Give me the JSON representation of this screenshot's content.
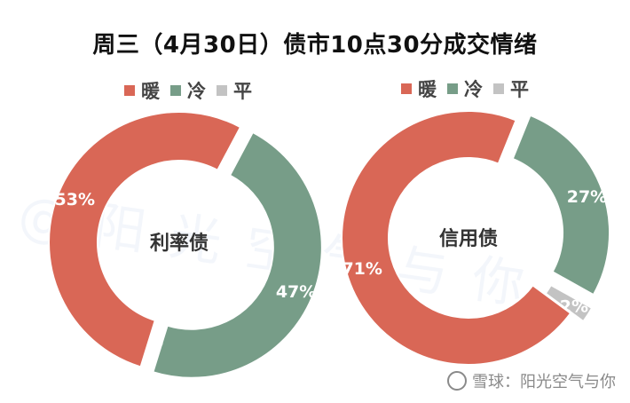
{
  "title": "周三（4月30日）债市10点30分成交情绪",
  "colors": {
    "warm": "#d96756",
    "cold": "#779d88",
    "flat": "#c3c3c3"
  },
  "chart_data": [
    {
      "type": "pie",
      "center_label": "利率债",
      "legend": [
        "暖",
        "冷",
        "平"
      ],
      "slices": [
        {
          "name": "暖",
          "value": 53,
          "label": "53%"
        },
        {
          "name": "冷",
          "value": 47,
          "label": "47%"
        },
        {
          "name": "平",
          "value": 0,
          "label": "0%"
        }
      ]
    },
    {
      "type": "pie",
      "center_label": "信用债",
      "legend": [
        "暖",
        "冷",
        "平"
      ],
      "slices": [
        {
          "name": "暖",
          "value": 71,
          "label": "71%"
        },
        {
          "name": "冷",
          "value": 27,
          "label": "27%"
        },
        {
          "name": "平",
          "value": 2,
          "label": "2%"
        }
      ]
    }
  ],
  "watermark": "@阳光空气与你",
  "footer": {
    "text": "雪球：阳光空气与你"
  }
}
